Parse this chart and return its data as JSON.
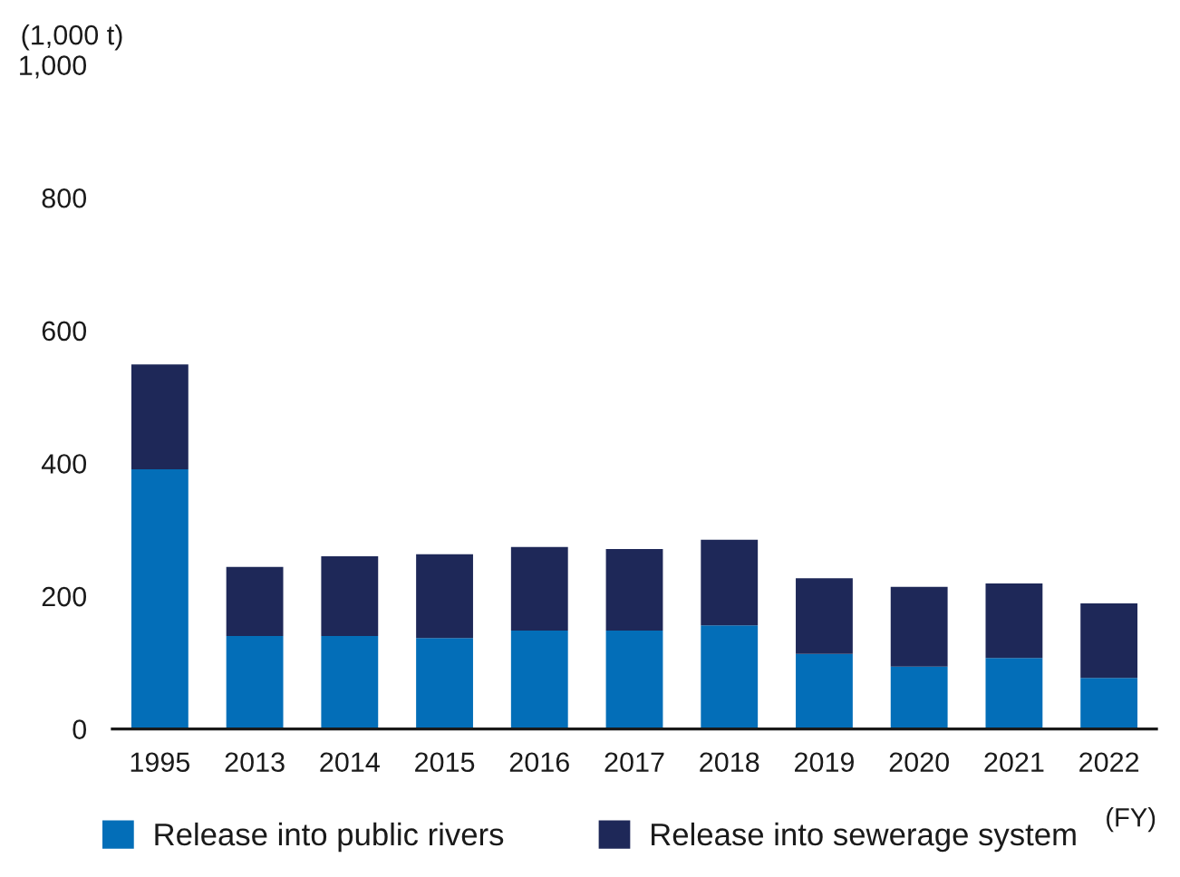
{
  "chart_data": {
    "type": "bar",
    "stacked": true,
    "ylabel": "(1,000 t)",
    "categories": [
      "1995",
      "2013",
      "2014",
      "2015",
      "2016",
      "2017",
      "2018",
      "2019",
      "2020",
      "2021",
      "2022"
    ],
    "series": [
      {
        "name": "Release into public rivers",
        "color": "#036eb8",
        "values": [
          391,
          140,
          140,
          137,
          148,
          148,
          156,
          113,
          94,
          107,
          77
        ]
      },
      {
        "name": "Release into sewerage system",
        "color": "#1e2858",
        "values": [
          158,
          104,
          120,
          126,
          126,
          123,
          129,
          114,
          120,
          112,
          112
        ]
      }
    ],
    "ylim": [
      0,
      1000
    ],
    "yticks": [
      0,
      200,
      400,
      600,
      800,
      {
        "value": 1000,
        "label": "1,000"
      }
    ],
    "annotations": [
      "(FY)"
    ],
    "grid": false,
    "legend": "bottom"
  }
}
